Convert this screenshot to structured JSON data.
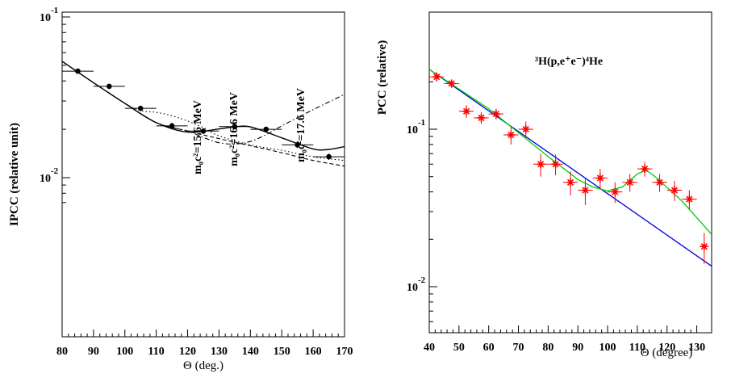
{
  "chart_data": [
    {
      "type": "scatter",
      "title": "",
      "xlabel": "Θ (deg.)",
      "ylabel": "IPCC (relative unit)",
      "xlim": [
        80,
        170
      ],
      "ylim": [
        0.007,
        0.1
      ],
      "yscale": "log",
      "x_ticks": [
        "80",
        "90",
        "100",
        "110",
        "120",
        "130",
        "140",
        "150",
        "160",
        "170"
      ],
      "y_ticks": [
        {
          "base": "10",
          "exp": "-1",
          "value": 0.1
        },
        {
          "base": "10",
          "exp": "-2",
          "value": 0.01
        }
      ],
      "points": [
        {
          "x": 85,
          "y": 0.046,
          "xerr": 5,
          "yerr": 0.001
        },
        {
          "x": 95,
          "y": 0.037,
          "xerr": 5,
          "yerr": 0.001
        },
        {
          "x": 105,
          "y": 0.027,
          "xerr": 5,
          "yerr": 0.001
        },
        {
          "x": 115,
          "y": 0.021,
          "xerr": 5,
          "yerr": 0.001
        },
        {
          "x": 125,
          "y": 0.0195,
          "xerr": 5,
          "yerr": 0.0008
        },
        {
          "x": 135,
          "y": 0.0208,
          "xerr": 5,
          "yerr": 0.0008
        },
        {
          "x": 145,
          "y": 0.02,
          "xerr": 5,
          "yerr": 0.0007
        },
        {
          "x": 155,
          "y": 0.016,
          "xerr": 5,
          "yerr": 0.0007
        },
        {
          "x": 165,
          "y": 0.0135,
          "xerr": 5,
          "yerr": 0.0006
        }
      ],
      "curves": [
        {
          "style": "solid",
          "x": [
            80,
            90,
            100,
            110,
            120,
            130,
            135,
            140,
            150,
            160,
            165,
            170
          ],
          "y": [
            0.053,
            0.039,
            0.029,
            0.022,
            0.0192,
            0.0201,
            0.0207,
            0.0207,
            0.0177,
            0.0151,
            0.015,
            0.0156
          ]
        },
        {
          "style": "dotted",
          "x": [
            80,
            90,
            100,
            105,
            110,
            115,
            120,
            125,
            130,
            140,
            150,
            160,
            170
          ],
          "y": [
            0.053,
            0.039,
            0.029,
            0.0262,
            0.0255,
            0.0243,
            0.0225,
            0.0205,
            0.0182,
            0.016,
            0.0148,
            0.0135,
            0.0128
          ]
        },
        {
          "style": "dash-dot",
          "x": [
            80,
            90,
            100,
            110,
            120,
            125,
            130,
            135,
            140,
            145,
            150,
            160,
            170
          ],
          "y": [
            0.053,
            0.039,
            0.029,
            0.022,
            0.0195,
            0.0178,
            0.0165,
            0.0162,
            0.0168,
            0.0185,
            0.021,
            0.0265,
            0.033
          ]
        },
        {
          "style": "dashed",
          "x": [
            80,
            90,
            100,
            110,
            120,
            130,
            140,
            150,
            160,
            170
          ],
          "y": [
            0.053,
            0.039,
            0.029,
            0.022,
            0.0195,
            0.0175,
            0.0158,
            0.0143,
            0.0128,
            0.0118
          ]
        }
      ],
      "annotations": [
        "m₀c²=15.6 MeV",
        "m₀c²=16.6 MeV",
        "m₀c²=17.6 MeV"
      ]
    },
    {
      "type": "scatter",
      "title": "³H(p,e⁺e⁻)⁴He",
      "xlabel": "Θ (degree)",
      "ylabel": "PCC (relative)",
      "xlim": [
        40,
        135
      ],
      "ylim": [
        0.005,
        0.3
      ],
      "yscale": "log",
      "x_ticks": [
        "40",
        "50",
        "60",
        "70",
        "80",
        "90",
        "100",
        "110",
        "120",
        "130"
      ],
      "y_ticks": [
        {
          "base": "10",
          "exp": "-1",
          "value": 0.1
        },
        {
          "base": "10",
          "exp": "-2",
          "value": 0.01
        }
      ],
      "points": [
        {
          "x": 42.5,
          "y": 0.215,
          "xerr": 2.5,
          "yerr": 0.015
        },
        {
          "x": 47.5,
          "y": 0.195,
          "xerr": 2.5,
          "yerr": 0.012
        },
        {
          "x": 52.5,
          "y": 0.13,
          "xerr": 2.5,
          "yerr": 0.012
        },
        {
          "x": 57.5,
          "y": 0.118,
          "xerr": 2.5,
          "yerr": 0.01
        },
        {
          "x": 62.5,
          "y": 0.125,
          "xerr": 2.5,
          "yerr": 0.01
        },
        {
          "x": 67.5,
          "y": 0.092,
          "xerr": 2.5,
          "yerr": 0.012
        },
        {
          "x": 72.5,
          "y": 0.1,
          "xerr": 2.5,
          "yerr": 0.012
        },
        {
          "x": 77.5,
          "y": 0.06,
          "xerr": 2.5,
          "yerr": 0.01
        },
        {
          "x": 82.5,
          "y": 0.06,
          "xerr": 2.5,
          "yerr": 0.009
        },
        {
          "x": 87.5,
          "y": 0.046,
          "xerr": 2.5,
          "yerr": 0.008
        },
        {
          "x": 92.5,
          "y": 0.041,
          "xerr": 2.5,
          "yerr": 0.008
        },
        {
          "x": 97.5,
          "y": 0.049,
          "xerr": 2.5,
          "yerr": 0.007
        },
        {
          "x": 102.5,
          "y": 0.04,
          "xerr": 2.5,
          "yerr": 0.006
        },
        {
          "x": 107.5,
          "y": 0.046,
          "xerr": 2.5,
          "yerr": 0.006
        },
        {
          "x": 112.5,
          "y": 0.056,
          "xerr": 2.5,
          "yerr": 0.006
        },
        {
          "x": 117.5,
          "y": 0.046,
          "xerr": 2.5,
          "yerr": 0.006
        },
        {
          "x": 122.5,
          "y": 0.041,
          "xerr": 2.5,
          "yerr": 0.006
        },
        {
          "x": 127.5,
          "y": 0.036,
          "xerr": 2.5,
          "yerr": 0.005
        },
        {
          "x": 132.5,
          "y": 0.018,
          "xerr": 1.5,
          "yerr": 0.004
        }
      ],
      "curves": [
        {
          "color": "#0000dd",
          "x": [
            40,
            135
          ],
          "y": [
            0.24,
            0.0135
          ]
        },
        {
          "color": "#00cc00",
          "x": [
            40,
            60,
            80,
            90,
            95,
            100,
            105,
            110,
            113,
            116,
            125,
            135
          ],
          "y": [
            0.24,
            0.135,
            0.067,
            0.048,
            0.043,
            0.0405,
            0.043,
            0.052,
            0.055,
            0.05,
            0.035,
            0.0215
          ]
        }
      ],
      "marker_color": "#ff0000"
    }
  ]
}
